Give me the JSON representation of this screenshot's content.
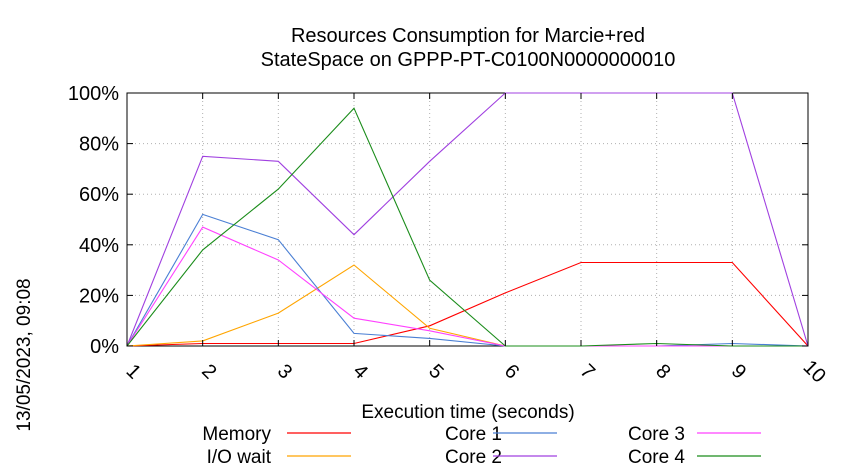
{
  "chart_data": {
    "type": "line",
    "title": [
      "Resources Consumption for Marcie+red",
      "StateSpace on GPPP-PT-C0100N0000000010"
    ],
    "xlabel": "Execution time (seconds)",
    "ylabel": "",
    "side_label": "13/05/2023, 09:08",
    "x": [
      1,
      2,
      3,
      4,
      5,
      6,
      7,
      8,
      9,
      10
    ],
    "xticks": [
      "1",
      "2",
      "3",
      "4",
      "5",
      "6",
      "7",
      "8",
      "9",
      "10"
    ],
    "yticks": [
      "0%",
      "20%",
      "40%",
      "60%",
      "80%",
      "100%"
    ],
    "ylim": [
      0,
      100
    ],
    "grid": true,
    "legend_position": "bottom",
    "series": [
      {
        "name": "Memory",
        "color": "#ff0000",
        "values": [
          0,
          1,
          1,
          1,
          8,
          21,
          33,
          33,
          33,
          0
        ]
      },
      {
        "name": "I/O wait",
        "color": "#ffa500",
        "values": [
          0,
          2,
          13,
          32,
          7,
          0,
          0,
          0,
          0,
          0
        ]
      },
      {
        "name": "Core 1",
        "color": "#4a7fd4",
        "values": [
          0,
          52,
          42,
          5,
          3,
          0,
          0,
          0,
          1,
          0
        ]
      },
      {
        "name": "Core 2",
        "color": "#a040e0",
        "values": [
          0,
          75,
          73,
          44,
          73,
          100,
          100,
          100,
          100,
          0
        ]
      },
      {
        "name": "Core 3",
        "color": "#ff40ff",
        "values": [
          0,
          47,
          34,
          11,
          6,
          0,
          0,
          0,
          0,
          0
        ]
      },
      {
        "name": "Core 4",
        "color": "#1a8c1a",
        "values": [
          0,
          38,
          62,
          94,
          26,
          0,
          0,
          1,
          0,
          0
        ]
      }
    ]
  }
}
